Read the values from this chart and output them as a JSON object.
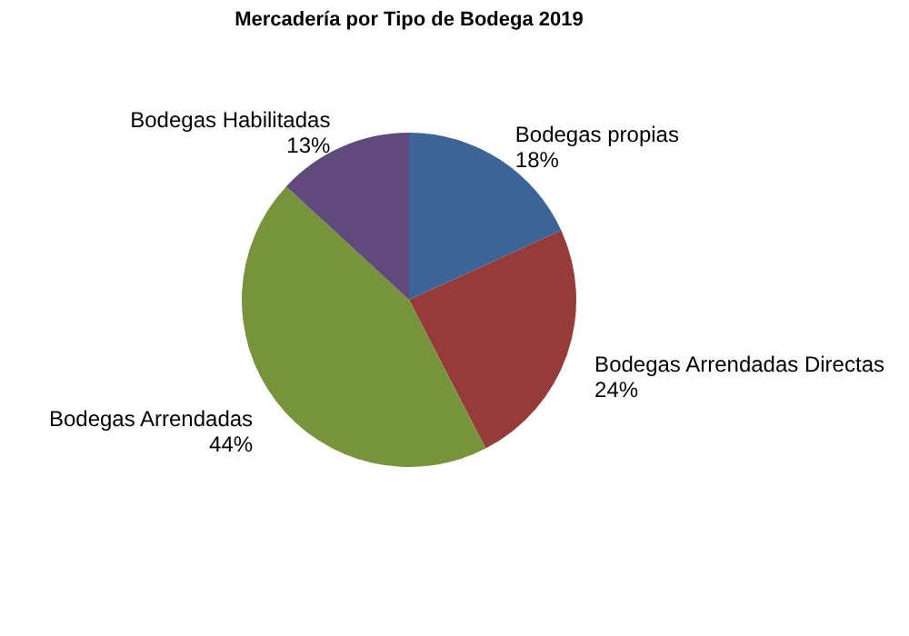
{
  "chart_data": {
    "type": "pie",
    "title": "Mercadería por Tipo de Bodega 2019",
    "categories": [
      "Bodegas propias",
      "Bodegas Arrendadas Directas",
      "Bodegas Arrendadas",
      "Bodegas Habilitadas"
    ],
    "values": [
      18,
      24,
      44,
      13
    ],
    "colors": [
      "#3d6496",
      "#953c3a",
      "#77933c",
      "#604a7b"
    ],
    "value_labels": [
      "18%",
      "24%",
      "44%",
      "13%"
    ],
    "legend": false
  }
}
